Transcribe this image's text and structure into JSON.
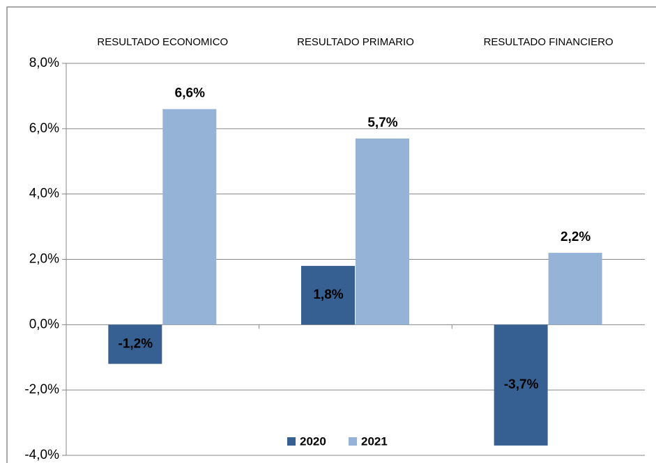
{
  "chart_data": {
    "type": "bar",
    "categories": [
      "RESULTADO ECONOMICO",
      "RESULTADO PRIMARIO",
      "RESULTADO FINANCIERO"
    ],
    "series": [
      {
        "name": "2020",
        "color": "#376092",
        "values": [
          -1.2,
          1.8,
          -3.7
        ],
        "value_labels": [
          "-1,2%",
          "1,8%",
          "-3,7%"
        ]
      },
      {
        "name": "2021",
        "color": "#95b3d7",
        "values": [
          6.6,
          5.7,
          2.2
        ],
        "value_labels": [
          "6,6%",
          "5,7%",
          "2,2%"
        ]
      }
    ],
    "ylim": [
      -4,
      8
    ],
    "yticks": [
      {
        "value": -4,
        "label": "-4,0%"
      },
      {
        "value": -2,
        "label": "-2,0%"
      },
      {
        "value": 0,
        "label": "0,0%"
      },
      {
        "value": 2,
        "label": "2,0%"
      },
      {
        "value": 4,
        "label": "4,0%"
      },
      {
        "value": 6,
        "label": "6,0%"
      },
      {
        "value": 8,
        "label": "8,0%"
      }
    ],
    "grid": true,
    "legend": "bottom"
  }
}
